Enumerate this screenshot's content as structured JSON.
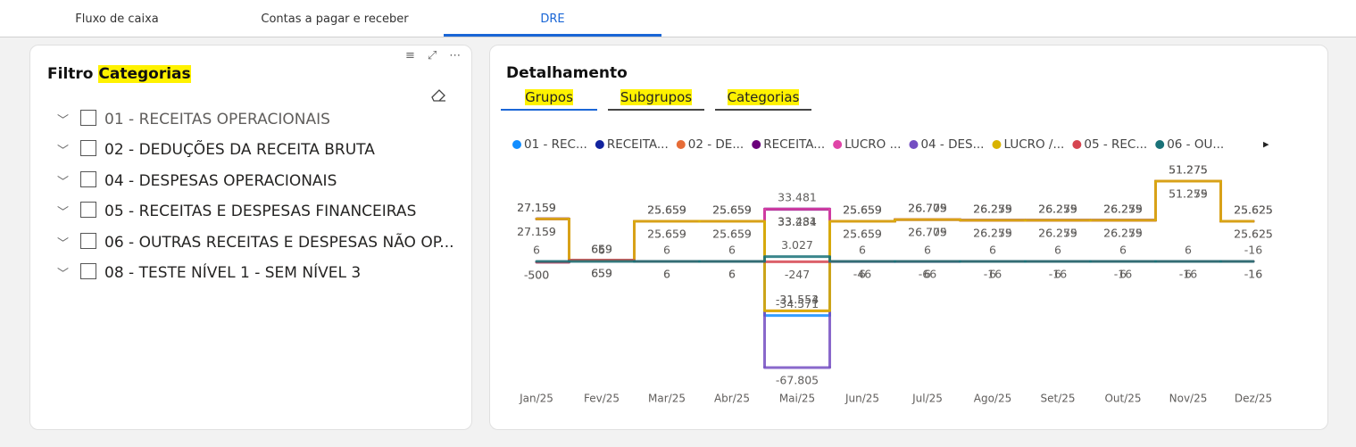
{
  "tabs": [
    "Fluxo de caixa",
    "Contas a pagar e receber",
    "DRE"
  ],
  "filter": {
    "title": "Filtro",
    "title_highlight": "Categorias",
    "items": [
      "01 - RECEITAS OPERACIONAIS",
      "02 - DEDUÇÕES DA RECEITA BRUTA",
      "04 - DESPESAS OPERACIONAIS",
      "05 - RECEITAS E DESPESAS FINANCEIRAS",
      "06 - OUTRAS RECEITAS E DESPESAS NÃO OP...",
      "08 - TESTE NÍVEL 1 - SEM NÍVEL 3"
    ]
  },
  "detail": {
    "title": "Detalhamento",
    "buttons": [
      "Grupos",
      "Subgrupos",
      "Categorias"
    ]
  },
  "chart_data": {
    "type": "line",
    "step": true,
    "legend": "top",
    "categories": [
      "Jan/25",
      "Fev/25",
      "Mar/25",
      "Abr/25",
      "Mai/25",
      "Jun/25",
      "Jul/25",
      "Ago/25",
      "Set/25",
      "Out/25",
      "Nov/25",
      "Dez/25"
    ],
    "series": [
      {
        "name": "01 - REC...",
        "color": "#118DFF",
        "values": [
          27159,
          659,
          25659,
          25659,
          -34571,
          25659,
          26775,
          26275,
          26275,
          26275,
          51275,
          25625
        ],
        "value_labels": [
          "27.159",
          "659",
          "25.659",
          "25.659",
          "-34.571",
          "25.659",
          "26.775",
          "26.275",
          "26.275",
          "26.275",
          "51.275",
          "25.625"
        ]
      },
      {
        "name": "RECEITA...",
        "color": "#12239E",
        "values": [
          27159,
          659,
          25659,
          25659,
          33481,
          25659,
          26775,
          26275,
          26275,
          26275,
          51275,
          25625
        ],
        "value_labels": [
          "27.159",
          "659",
          "25.659",
          "25.659",
          "33.481",
          "25.659",
          "26.775",
          "26.275",
          "26.275",
          "26.275",
          "51.275",
          "25.625"
        ]
      },
      {
        "name": "02 - DE...",
        "color": "#E66C37",
        "values": [
          27159,
          659,
          25659,
          25659,
          -31553,
          25659,
          26709,
          26259,
          26259,
          26259,
          51275,
          25625
        ],
        "value_labels": [
          "27.159",
          "659",
          "25.659",
          "25.659",
          "-31.553",
          "25.659",
          "26.709",
          "26.259",
          "26.259",
          "26.259",
          "51.275",
          "25.625"
        ]
      },
      {
        "name": "RECEITA...",
        "color": "#6B007B",
        "values": [
          27159,
          659,
          25659,
          25659,
          33234,
          25659,
          26709,
          26259,
          26259,
          26259,
          51259,
          25625
        ],
        "value_labels": [
          "27.159",
          "659",
          "25.659",
          "25.659",
          "33.234",
          "25.659",
          "26.709",
          "26.259",
          "26.259",
          "26.259",
          "51.259",
          "25.625"
        ]
      },
      {
        "name": "LUCRO ...",
        "color": "#E044A7",
        "values": [
          27159,
          659,
          25659,
          25659,
          33481,
          25659,
          26775,
          26275,
          26275,
          26275,
          51275,
          25625
        ],
        "value_labels": [
          "27.159",
          "659",
          "25.659",
          "25.659",
          "33.481",
          "25.659",
          "26.775",
          "26.275",
          "26.275",
          "26.275",
          "51.275",
          "25.625"
        ]
      },
      {
        "name": "04 - DES...",
        "color": "#744EC2",
        "values": [
          -500,
          659,
          6,
          6,
          -67805,
          -46,
          -66,
          6,
          6,
          6,
          6,
          -16
        ],
        "value_labels": [
          "-500",
          "659",
          "6",
          "6",
          "-67.805",
          "-46",
          "-66",
          "6",
          "6",
          "6",
          "6",
          "-16"
        ]
      },
      {
        "name": "LUCRO /...",
        "color": "#D9B300",
        "values": [
          27159,
          659,
          25659,
          25659,
          -31554,
          25659,
          26709,
          26259,
          26259,
          26259,
          51275,
          25625
        ],
        "value_labels": [
          "27.159",
          "659",
          "25.659",
          "25.659",
          "-31.554",
          "25.659",
          "26.709",
          "26.259",
          "26.259",
          "26.259",
          "51.275",
          "25.625"
        ]
      },
      {
        "name": "05 - REC...",
        "color": "#D64550",
        "values": [
          -500,
          659,
          6,
          6,
          -247,
          6,
          6,
          -16,
          -16,
          -16,
          -16,
          -16
        ],
        "value_labels": [
          "-500",
          "659",
          "6",
          "6",
          "-247",
          "6",
          "6",
          "-16",
          "-16",
          "-16",
          "-16",
          "-16"
        ]
      },
      {
        "name": "06 - OU...",
        "color": "#197278",
        "values": [
          6,
          6,
          6,
          6,
          3027,
          6,
          6,
          6,
          6,
          6,
          6,
          -16
        ],
        "value_labels": [
          "6",
          "6",
          "6",
          "6",
          "3.027",
          "6",
          "6",
          "6",
          "6",
          "6",
          "6",
          "-16"
        ]
      }
    ]
  }
}
